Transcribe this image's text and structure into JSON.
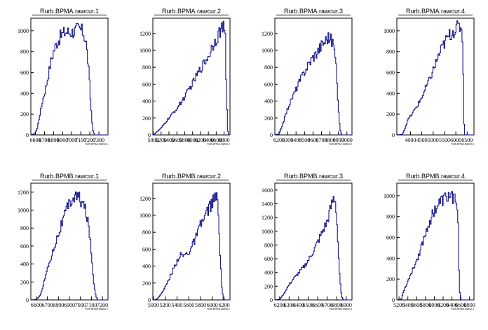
{
  "chart_data": [
    {
      "type": "bar",
      "title": "Rurb.BPMA.rawcur.1",
      "xlabel": "Rurb.BPMA.rawcur.1",
      "xlim": [
        6550,
        7400
      ],
      "ylim": [
        0,
        1120
      ],
      "xticks": [
        "6600",
        "6700",
        "6800",
        "6900",
        "7000",
        "7100",
        "7200",
        "7300"
      ],
      "yticks": [
        "0",
        "200",
        "400",
        "600",
        "800",
        "1000"
      ],
      "profile": [
        [
          6550,
          0
        ],
        [
          6590,
          10
        ],
        [
          6620,
          60
        ],
        [
          6650,
          200
        ],
        [
          6680,
          330
        ],
        [
          6710,
          430
        ],
        [
          6740,
          560
        ],
        [
          6770,
          700
        ],
        [
          6800,
          800
        ],
        [
          6830,
          870
        ],
        [
          6860,
          920
        ],
        [
          6890,
          960
        ],
        [
          6920,
          980
        ],
        [
          6950,
          990
        ],
        [
          6980,
          980
        ],
        [
          7010,
          990
        ],
        [
          7040,
          1000
        ],
        [
          7070,
          1020
        ],
        [
          7100,
          1010
        ],
        [
          7130,
          980
        ],
        [
          7160,
          880
        ],
        [
          7190,
          600
        ],
        [
          7210,
          300
        ],
        [
          7230,
          60
        ],
        [
          7250,
          0
        ],
        [
          7400,
          0
        ]
      ]
    },
    {
      "type": "bar",
      "title": "Rurb.BPMA.rawcur.2",
      "xlabel": "Rurb.BPMA.rawcur.2",
      "xlim": [
        4990,
        6950
      ],
      "ylim": [
        0,
        1380
      ],
      "xticks": [
        "5000",
        "5200",
        "5400",
        "5600",
        "5800",
        "6000",
        "6200",
        "6400",
        "6600",
        "6800"
      ],
      "yticks": [
        "0",
        "200",
        "400",
        "600",
        "800",
        "1000",
        "1200"
      ],
      "profile": [
        [
          4990,
          0
        ],
        [
          5020,
          5
        ],
        [
          5080,
          30
        ],
        [
          5200,
          80
        ],
        [
          5400,
          200
        ],
        [
          5600,
          310
        ],
        [
          5800,
          450
        ],
        [
          6000,
          610
        ],
        [
          6200,
          780
        ],
        [
          6400,
          930
        ],
        [
          6500,
          1050
        ],
        [
          6600,
          1140
        ],
        [
          6700,
          1230
        ],
        [
          6760,
          1270
        ],
        [
          6800,
          1250
        ],
        [
          6830,
          1150
        ],
        [
          6850,
          700
        ],
        [
          6880,
          200
        ],
        [
          6900,
          0
        ],
        [
          6950,
          0
        ]
      ]
    },
    {
      "type": "bar",
      "title": "Rurb.BPMA.rawcur.3",
      "xlabel": "Rurb.BPMA.rawcur.3",
      "xlim": [
        6150,
        7060
      ],
      "ylim": [
        0,
        1380
      ],
      "xticks": [
        "6200",
        "6300",
        "6400",
        "6500",
        "6600",
        "6700",
        "6800",
        "6900",
        "7000"
      ],
      "yticks": [
        "0",
        "200",
        "400",
        "600",
        "800",
        "1000",
        "1200"
      ],
      "profile": [
        [
          6150,
          0
        ],
        [
          6200,
          10
        ],
        [
          6240,
          120
        ],
        [
          6280,
          250
        ],
        [
          6320,
          360
        ],
        [
          6360,
          450
        ],
        [
          6400,
          540
        ],
        [
          6450,
          650
        ],
        [
          6500,
          750
        ],
        [
          6550,
          840
        ],
        [
          6600,
          920
        ],
        [
          6650,
          980
        ],
        [
          6700,
          1060
        ],
        [
          6750,
          1120
        ],
        [
          6780,
          1160
        ],
        [
          6810,
          1130
        ],
        [
          6840,
          1080
        ],
        [
          6860,
          950
        ],
        [
          6880,
          700
        ],
        [
          6900,
          300
        ],
        [
          6920,
          60
        ],
        [
          6940,
          0
        ],
        [
          7060,
          0
        ]
      ]
    },
    {
      "type": "bar",
      "title": "Rurb.BPMA.rawcur.4",
      "xlabel": "Rurb.BPMA.rawcur.4",
      "xlim": [
        3400,
        6800
      ],
      "ylim": [
        0,
        1120
      ],
      "xticks": [
        "4000",
        "4500",
        "5000",
        "5500",
        "6000",
        "6500"
      ],
      "yticks": [
        "0",
        "200",
        "400",
        "600",
        "800",
        "1000"
      ],
      "profile": [
        [
          3400,
          0
        ],
        [
          3650,
          5
        ],
        [
          3750,
          60
        ],
        [
          3900,
          150
        ],
        [
          4100,
          210
        ],
        [
          4300,
          280
        ],
        [
          4500,
          360
        ],
        [
          4700,
          460
        ],
        [
          4900,
          560
        ],
        [
          5100,
          680
        ],
        [
          5300,
          790
        ],
        [
          5500,
          880
        ],
        [
          5700,
          950
        ],
        [
          5900,
          1000
        ],
        [
          6100,
          1030
        ],
        [
          6200,
          1040
        ],
        [
          6280,
          1020
        ],
        [
          6320,
          700
        ],
        [
          6350,
          200
        ],
        [
          6380,
          30
        ],
        [
          6400,
          0
        ],
        [
          6800,
          0
        ]
      ]
    },
    {
      "type": "bar",
      "title": "Rurb.BPMB.rawcur.1",
      "xlabel": "Rurb.BPMB.rawcur.1",
      "xlim": [
        6550,
        7250
      ],
      "ylim": [
        0,
        1300
      ],
      "xticks": [
        "6600",
        "6700",
        "6800",
        "6900",
        "7000",
        "7100",
        "7200"
      ],
      "yticks": [
        "0",
        "200",
        "400",
        "600",
        "800",
        "1000",
        "1200"
      ],
      "profile": [
        [
          6550,
          0
        ],
        [
          6600,
          5
        ],
        [
          6630,
          40
        ],
        [
          6660,
          150
        ],
        [
          6690,
          300
        ],
        [
          6720,
          420
        ],
        [
          6750,
          540
        ],
        [
          6780,
          660
        ],
        [
          6810,
          770
        ],
        [
          6840,
          880
        ],
        [
          6870,
          980
        ],
        [
          6900,
          1070
        ],
        [
          6930,
          1130
        ],
        [
          6960,
          1150
        ],
        [
          6990,
          1130
        ],
        [
          7020,
          1080
        ],
        [
          7050,
          980
        ],
        [
          7080,
          780
        ],
        [
          7100,
          500
        ],
        [
          7120,
          200
        ],
        [
          7140,
          40
        ],
        [
          7160,
          0
        ],
        [
          7250,
          0
        ]
      ]
    },
    {
      "type": "bar",
      "title": "Rurb.BPMB.rawcur.2",
      "xlabel": "Rurb.BPMB.rawcur.2",
      "xlim": [
        4990,
        6300
      ],
      "ylim": [
        0,
        1380
      ],
      "xticks": [
        "5000",
        "5200",
        "5400",
        "5600",
        "5800",
        "6000",
        "6200"
      ],
      "yticks": [
        "0",
        "200",
        "400",
        "600",
        "800",
        "1000",
        "1200"
      ],
      "profile": [
        [
          4990,
          0
        ],
        [
          5050,
          5
        ],
        [
          5100,
          40
        ],
        [
          5200,
          150
        ],
        [
          5300,
          300
        ],
        [
          5400,
          460
        ],
        [
          5450,
          530
        ],
        [
          5500,
          520
        ],
        [
          5600,
          560
        ],
        [
          5700,
          700
        ],
        [
          5800,
          880
        ],
        [
          5900,
          1020
        ],
        [
          5950,
          1100
        ],
        [
          6000,
          1150
        ],
        [
          6050,
          1200
        ],
        [
          6080,
          1220
        ],
        [
          6100,
          1050
        ],
        [
          6130,
          600
        ],
        [
          6160,
          150
        ],
        [
          6190,
          10
        ],
        [
          6210,
          0
        ],
        [
          6300,
          0
        ]
      ]
    },
    {
      "type": "bar",
      "title": "Rurb.BPMB.rawcur.3",
      "xlabel": "Rurb.BPMB.rawcur.3",
      "xlim": [
        6150,
        6960
      ],
      "ylim": [
        0,
        1700
      ],
      "xticks": [
        "6200",
        "6300",
        "6400",
        "6500",
        "6600",
        "6700",
        "6800",
        "6900"
      ],
      "yticks": [
        "0",
        "200",
        "400",
        "600",
        "800",
        "1000",
        "1200",
        "1400",
        "1600"
      ],
      "profile": [
        [
          6150,
          0
        ],
        [
          6200,
          10
        ],
        [
          6240,
          80
        ],
        [
          6290,
          200
        ],
        [
          6340,
          300
        ],
        [
          6400,
          390
        ],
        [
          6460,
          490
        ],
        [
          6520,
          620
        ],
        [
          6580,
          780
        ],
        [
          6620,
          900
        ],
        [
          6660,
          1020
        ],
        [
          6700,
          1140
        ],
        [
          6740,
          1350
        ],
        [
          6770,
          1500
        ],
        [
          6790,
          1420
        ],
        [
          6810,
          900
        ],
        [
          6830,
          350
        ],
        [
          6850,
          60
        ],
        [
          6870,
          0
        ],
        [
          6960,
          0
        ]
      ]
    },
    {
      "type": "bar",
      "title": "Rurb.BPMB.rawcur.4",
      "xlabel": "Rurb.BPMB.rawcur.4",
      "xlim": [
        5150,
        6900
      ],
      "ylim": [
        0,
        1120
      ],
      "xticks": [
        "5200",
        "5400",
        "5600",
        "5800",
        "6000",
        "6200",
        "6400",
        "6600",
        "6800"
      ],
      "yticks": [
        "0",
        "200",
        "400",
        "600",
        "800",
        "1000"
      ],
      "profile": [
        [
          5150,
          0
        ],
        [
          5250,
          5
        ],
        [
          5300,
          80
        ],
        [
          5400,
          180
        ],
        [
          5500,
          280
        ],
        [
          5600,
          380
        ],
        [
          5700,
          500
        ],
        [
          5800,
          640
        ],
        [
          5900,
          760
        ],
        [
          6000,
          860
        ],
        [
          6100,
          920
        ],
        [
          6200,
          960
        ],
        [
          6300,
          990
        ],
        [
          6400,
          1000
        ],
        [
          6450,
          980
        ],
        [
          6500,
          940
        ],
        [
          6540,
          700
        ],
        [
          6560,
          300
        ],
        [
          6580,
          60
        ],
        [
          6600,
          0
        ],
        [
          6900,
          0
        ]
      ]
    }
  ]
}
